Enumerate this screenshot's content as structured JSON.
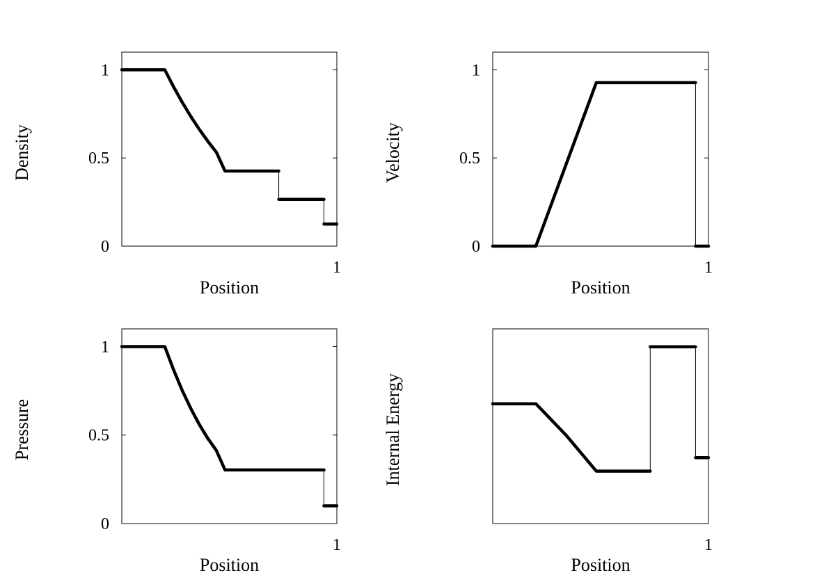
{
  "chart_data": [
    {
      "type": "line",
      "xlabel": "Position",
      "ylabel": "Density",
      "xlim": [
        0,
        1
      ],
      "ylim": [
        0,
        1.1
      ],
      "xticks": [
        {
          "value": 1,
          "label": "1"
        }
      ],
      "yticks": [
        {
          "value": 0,
          "label": "0"
        },
        {
          "value": 0.5,
          "label": "0.5"
        },
        {
          "value": 1,
          "label": "1"
        }
      ],
      "grid": false,
      "series": [
        {
          "points": [
            [
              0,
              1
            ],
            [
              0.2,
              1
            ],
            [
              0.24,
              0.905
            ],
            [
              0.28,
              0.818
            ],
            [
              0.32,
              0.737
            ],
            [
              0.36,
              0.663
            ],
            [
              0.4,
              0.595
            ],
            [
              0.44,
              0.532
            ],
            [
              0.48,
              0.426
            ],
            [
              0.73,
              0.426
            ],
            [
              0.73,
              0.265
            ],
            [
              0.94,
              0.265
            ],
            [
              0.94,
              0.125
            ],
            [
              1,
              0.125
            ]
          ]
        }
      ]
    },
    {
      "type": "line",
      "xlabel": "Position",
      "ylabel": "Velocity",
      "xlim": [
        0,
        1
      ],
      "ylim": [
        0,
        1.1
      ],
      "xticks": [
        {
          "value": 1,
          "label": "1"
        }
      ],
      "yticks": [
        {
          "value": 0,
          "label": "0"
        },
        {
          "value": 0.5,
          "label": "0.5"
        },
        {
          "value": 1,
          "label": "1"
        }
      ],
      "grid": false,
      "series": [
        {
          "points": [
            [
              0,
              0
            ],
            [
              0.2,
              0
            ],
            [
              0.48,
              0.927
            ],
            [
              0.94,
              0.927
            ],
            [
              0.94,
              0
            ],
            [
              1,
              0
            ]
          ]
        }
      ]
    },
    {
      "type": "line",
      "xlabel": "Position",
      "ylabel": "Pressure",
      "xlim": [
        0,
        1
      ],
      "ylim": [
        0,
        1.1
      ],
      "xticks": [
        {
          "value": 1,
          "label": "1"
        }
      ],
      "yticks": [
        {
          "value": 0,
          "label": "0"
        },
        {
          "value": 0.5,
          "label": "0.5"
        },
        {
          "value": 1,
          "label": "1"
        }
      ],
      "grid": false,
      "series": [
        {
          "points": [
            [
              0,
              1
            ],
            [
              0.2,
              1
            ],
            [
              0.24,
              0.871
            ],
            [
              0.28,
              0.755
            ],
            [
              0.32,
              0.652
            ],
            [
              0.36,
              0.561
            ],
            [
              0.4,
              0.481
            ],
            [
              0.44,
              0.412
            ],
            [
              0.48,
              0.303
            ],
            [
              0.94,
              0.303
            ],
            [
              0.94,
              0.1
            ],
            [
              1,
              0.1
            ]
          ]
        }
      ]
    },
    {
      "type": "line",
      "xlabel": "Position",
      "ylabel": "Internal Energy",
      "xlim": [
        0,
        1
      ],
      "ylim": [
        1.7,
        3.0
      ],
      "xticks": [
        {
          "value": 1,
          "label": "1"
        }
      ],
      "yticks": [],
      "grid": false,
      "series": [
        {
          "points": [
            [
              0,
              2.5
            ],
            [
              0.2,
              2.5
            ],
            [
              0.34,
              2.29
            ],
            [
              0.48,
              2.05
            ],
            [
              0.73,
              2.05
            ],
            [
              0.73,
              2.88
            ],
            [
              0.94,
              2.88
            ],
            [
              0.94,
              2.14
            ],
            [
              1,
              2.14
            ]
          ]
        }
      ]
    }
  ]
}
